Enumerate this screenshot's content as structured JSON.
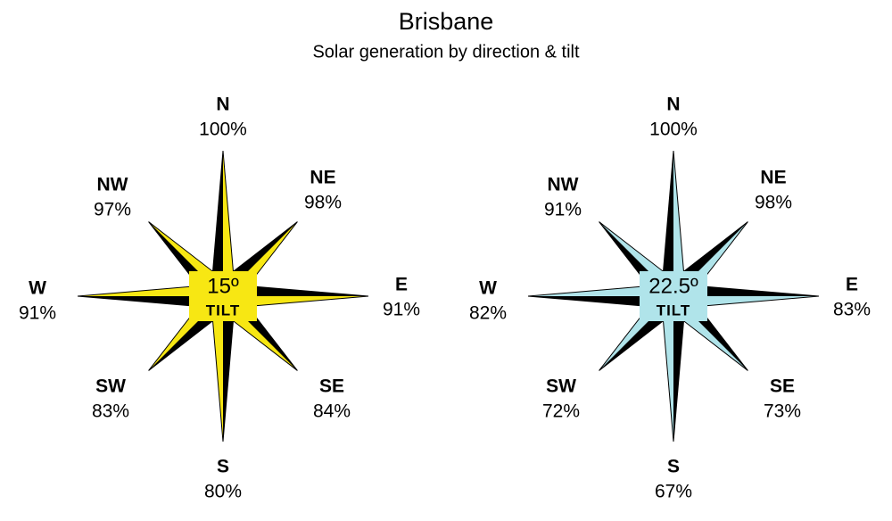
{
  "title": "Brisbane",
  "subtitle": "Solar generation by direction & tilt",
  "roses": [
    {
      "tilt": "15º",
      "tilt_label": "TILT",
      "color": "#f7e713",
      "directions": [
        {
          "name": "N",
          "value": "100%"
        },
        {
          "name": "NE",
          "value": "98%"
        },
        {
          "name": "E",
          "value": "91%"
        },
        {
          "name": "SE",
          "value": "84%"
        },
        {
          "name": "S",
          "value": "80%"
        },
        {
          "name": "SW",
          "value": "83%"
        },
        {
          "name": "W",
          "value": "91%"
        },
        {
          "name": "NW",
          "value": "97%"
        }
      ]
    },
    {
      "tilt": "22.5º",
      "tilt_label": "TILT",
      "color": "#b0e4ea",
      "directions": [
        {
          "name": "N",
          "value": "100%"
        },
        {
          "name": "NE",
          "value": "98%"
        },
        {
          "name": "E",
          "value": "83%"
        },
        {
          "name": "SE",
          "value": "73%"
        },
        {
          "name": "S",
          "value": "67%"
        },
        {
          "name": "SW",
          "value": "72%"
        },
        {
          "name": "W",
          "value": "82%"
        },
        {
          "name": "NW",
          "value": "91%"
        }
      ]
    }
  ]
}
